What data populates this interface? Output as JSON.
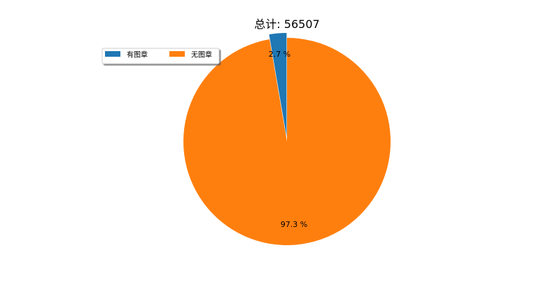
{
  "chart_data": {
    "type": "pie",
    "title": "总计: 56507",
    "slices": [
      {
        "label": "有图章",
        "percent": 2.7,
        "percent_label": "2.7 %",
        "color": "#1f77b4",
        "exploded": true
      },
      {
        "label": "无图章",
        "percent": 97.3,
        "percent_label": "97.3 %",
        "color": "#ff7f0e",
        "exploded": false
      }
    ],
    "start_angle_deg": 90,
    "direction": "counterclockwise",
    "legend": {
      "placement": "upper-left",
      "columns": 2,
      "shadow": true,
      "entries": [
        "有图章",
        "无图章"
      ]
    }
  }
}
